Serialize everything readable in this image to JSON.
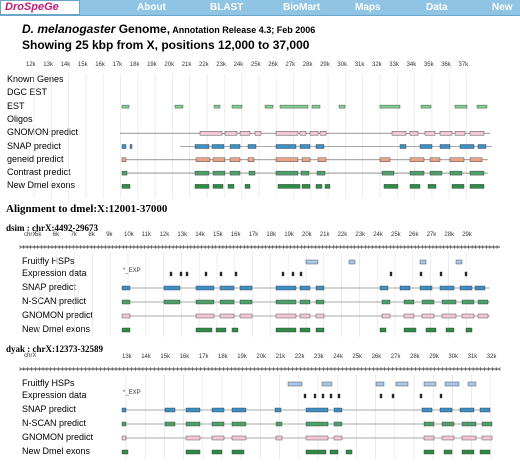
{
  "nav": {
    "logo": "DroSpeGe",
    "items": [
      "About",
      "BLAST",
      "BioMart",
      "Maps",
      "Data",
      "New"
    ]
  },
  "header": {
    "species": "D. melanogaster",
    "genome_word": " Genome,",
    "release": " Annotation Release 4.3; Feb 2006",
    "showing": "Showing 25 kbp from X, positions 12,000 to 37,000"
  },
  "panel1": {
    "ticks": [
      "12k",
      "13k",
      "14k",
      "15k",
      "16k",
      "17k",
      "18k",
      "19k",
      "20k",
      "21k",
      "22k",
      "23k",
      "24k",
      "25k",
      "26k",
      "27k",
      "28k",
      "29k",
      "30k",
      "31k",
      "32k",
      "33k",
      "34k",
      "35k",
      "36k",
      "37k"
    ],
    "tracks": [
      "Known Genes",
      "DGC EST",
      "EST",
      "Oligos",
      "GNOMON predict",
      "SNAP predict",
      "geneid predict",
      "Contrast predict",
      "New Dmel exons"
    ]
  },
  "alignment": {
    "heading": "Alignment to dmel:X:12001-37000",
    "dsim": {
      "heading": "dsim : chrX:4492-29673",
      "chr_label": "chrX",
      "ticks": [
        "5k",
        "6k",
        "7k",
        "8k",
        "9k",
        "10k",
        "11k",
        "12k",
        "13k",
        "14k",
        "15k",
        "16k",
        "17k",
        "18k",
        "19k",
        "20k",
        "21k",
        "22k",
        "23k",
        "24k",
        "25k",
        "26k",
        "27k",
        "28k",
        "29k"
      ],
      "tracks": [
        "Fruitfly HSPs",
        "Expression data",
        "SNAP predict",
        "N-SCAN predict",
        "GNOMON predict",
        "New Dmel exons"
      ],
      "exp_label": "*_EXP"
    },
    "dyak": {
      "heading": "dyak : chrX:12373-32589",
      "chr_label": "chrX",
      "ticks": [
        "13k",
        "14k",
        "15k",
        "16k",
        "17k",
        "18k",
        "19k",
        "20k",
        "21k",
        "22k",
        "23k",
        "24k",
        "25k",
        "26k",
        "27k",
        "28k",
        "29k",
        "30k",
        "31k",
        "32k"
      ],
      "tracks": [
        "Fruitfly HSPs",
        "Expression data",
        "SNAP predict",
        "N-SCAN predict",
        "GNOMON predict",
        "New Dmel exons"
      ],
      "exp_label": "*_EXP"
    }
  },
  "colors": {
    "nav": "#8fc4e4",
    "logo": "#c2187a",
    "est": "#7fcf8f",
    "gnomon": "#f2c7d6",
    "snap": "#3d8fc4",
    "geneid": "#e7a488",
    "contrast": "#4f9f6b",
    "newexon": "#2f8c46",
    "hsp": "#a9c8e8"
  }
}
